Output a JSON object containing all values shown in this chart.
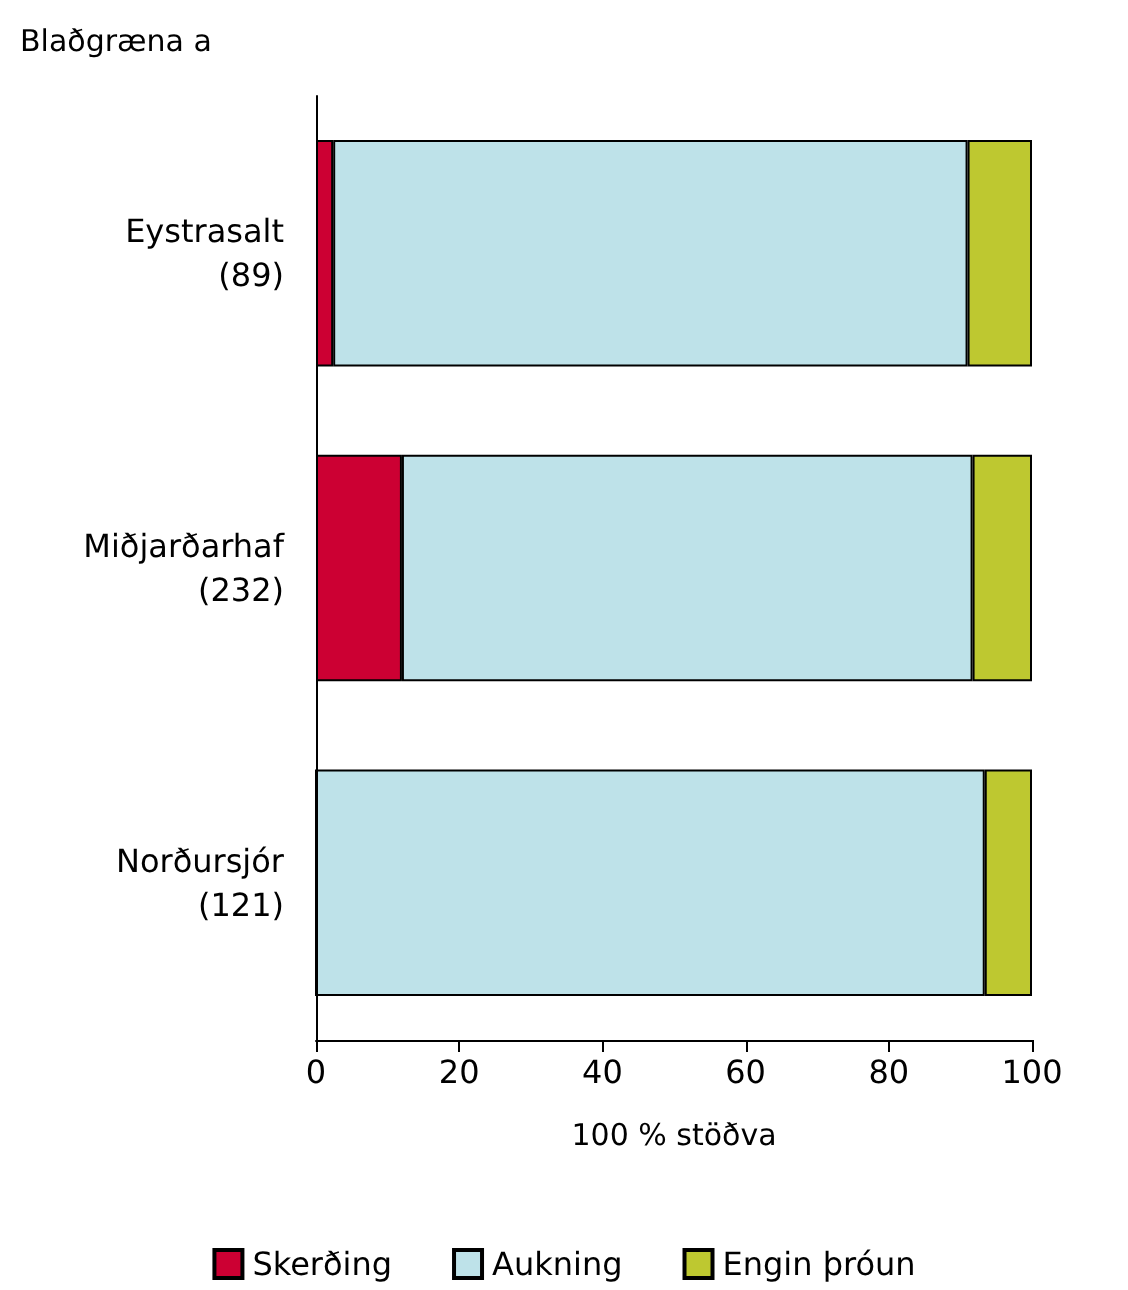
{
  "chart_data": {
    "type": "bar",
    "orientation": "horizontal",
    "stacked": true,
    "title": "Blaðgræna a",
    "xlabel": "100 % stöðva",
    "categories": [
      "Eystrasalt\n(89)",
      "Miðjarðarhaf\n(232)",
      "Norðursjór\n(121)"
    ],
    "series": [
      {
        "name": "Skerðing",
        "color": "#cc0033",
        "values": [
          2.4,
          12,
          0
        ]
      },
      {
        "name": "Aukning",
        "color": "#bee2e9",
        "values": [
          88.6,
          79.7,
          93.4
        ]
      },
      {
        "name": "Engin þróun",
        "color": "#bec830",
        "values": [
          9,
          8.3,
          6.6
        ]
      }
    ],
    "xlim": [
      0,
      100
    ],
    "xticks": [
      0,
      20,
      40,
      60,
      80,
      100
    ],
    "legend": "bottom"
  }
}
